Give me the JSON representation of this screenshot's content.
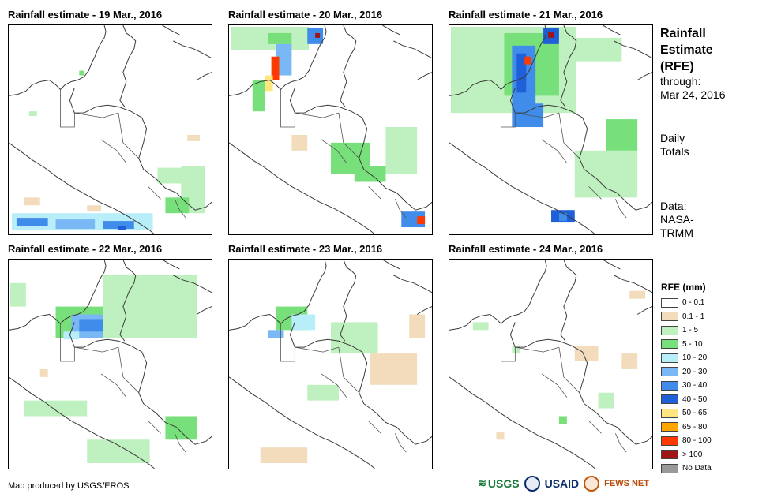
{
  "panels": [
    {
      "title": "Rainfall estimate - 19 Mar., 2016"
    },
    {
      "title": "Rainfall estimate - 20 Mar., 2016"
    },
    {
      "title": "Rainfall estimate - 21 Mar., 2016"
    },
    {
      "title": "Rainfall estimate - 22 Mar., 2016"
    },
    {
      "title": "Rainfall estimate - 23 Mar., 2016"
    },
    {
      "title": "Rainfall estimate - 24 Mar., 2016"
    }
  ],
  "side": {
    "title_line1": "Rainfall",
    "title_line2": "Estimate",
    "title_line3": "(RFE)",
    "through_label": "through:",
    "through_date": "Mar 24, 2016",
    "totals_line1": "Daily",
    "totals_line2": "Totals",
    "data_label": "Data:",
    "data_source1": "NASA-",
    "data_source2": "TRMM"
  },
  "legend": {
    "title": "RFE (mm)",
    "items": [
      {
        "label": "0 - 0.1",
        "color": "#ffffff"
      },
      {
        "label": "0.1 - 1",
        "color": "#f2dcbc"
      },
      {
        "label": "1 - 5",
        "color": "#bff0bf"
      },
      {
        "label": "5 - 10",
        "color": "#77e07a"
      },
      {
        "label": "10 - 20",
        "color": "#b7eefa"
      },
      {
        "label": "20 - 30",
        "color": "#79b8f4"
      },
      {
        "label": "30 - 40",
        "color": "#3f8cea"
      },
      {
        "label": "40 - 50",
        "color": "#1f5fd8"
      },
      {
        "label": "50 - 65",
        "color": "#ffe680"
      },
      {
        "label": "65 - 80",
        "color": "#ffa500"
      },
      {
        "label": "80 - 100",
        "color": "#ff3a00"
      },
      {
        "label": "> 100",
        "color": "#a01515"
      },
      {
        "label": "No Data",
        "color": "#999999"
      }
    ]
  },
  "footer": {
    "credit": "Map produced by USGS/EROS"
  },
  "logos": {
    "usgs": "USGS",
    "usaid": "USAID",
    "fews": "FEWS NET"
  }
}
